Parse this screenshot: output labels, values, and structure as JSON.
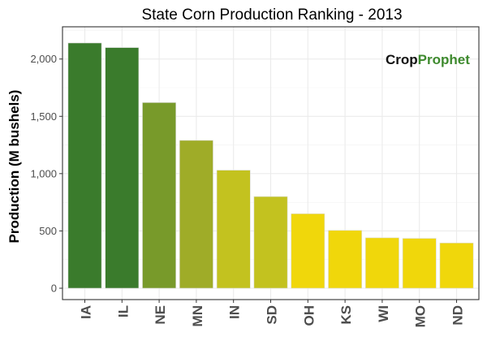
{
  "chart_data": {
    "type": "bar",
    "title": "State Corn Production Ranking - 2013",
    "xlabel": "",
    "ylabel": "Production (M bushels)",
    "categories": [
      "IA",
      "IL",
      "NE",
      "MN",
      "IN",
      "SD",
      "OH",
      "KS",
      "WI",
      "MO",
      "ND"
    ],
    "values": [
      2140,
      2100,
      1620,
      1290,
      1030,
      800,
      650,
      505,
      440,
      435,
      395
    ],
    "colors": [
      "#3a7b2c",
      "#3a7b2c",
      "#789a2a",
      "#9fac28",
      "#c3c21f",
      "#c3c21f",
      "#f0d70b",
      "#f0d70b",
      "#f0d70b",
      "#f0d70b",
      "#f0d70b"
    ],
    "yticks": [
      0,
      500,
      1000,
      1500,
      2000
    ],
    "ytick_labels": [
      "0",
      "500",
      "1,000",
      "1,500",
      "2,000"
    ],
    "ylim": [
      0,
      2250
    ],
    "grid": true,
    "legend": "none"
  },
  "watermark": {
    "part1": "Crop",
    "part2": "Prophet"
  }
}
